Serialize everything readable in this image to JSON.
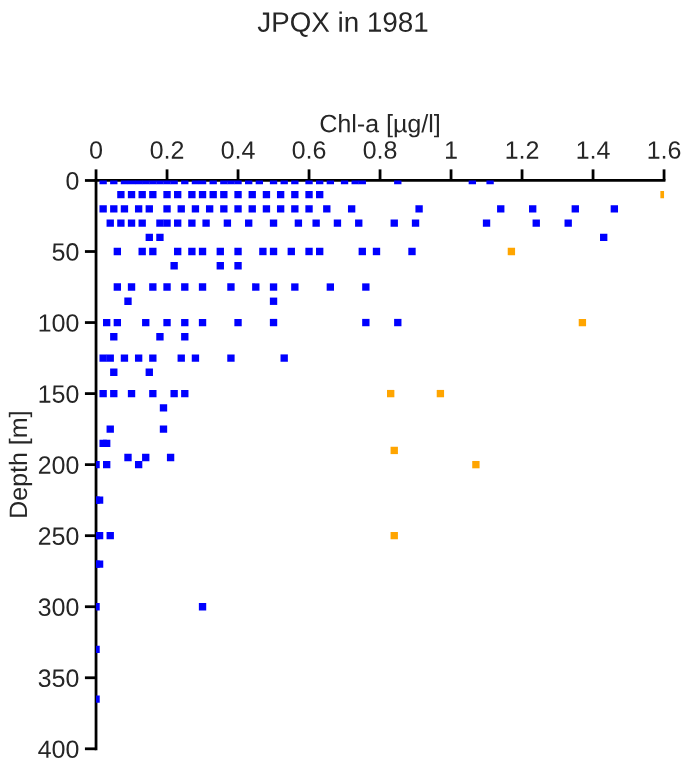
{
  "chart_data": {
    "type": "scatter",
    "title": "JPQX in 1981",
    "xlabel": "Chl-a [µg/l]",
    "ylabel": "Depth [m]",
    "xlim": [
      0,
      1.6
    ],
    "xticks": [
      0,
      0.2,
      0.4,
      0.6,
      0.8,
      1,
      1.2,
      1.4,
      1.6
    ],
    "ylim": [
      400,
      0
    ],
    "yticks": [
      0,
      50,
      100,
      150,
      200,
      250,
      300,
      350,
      400
    ],
    "grid": false,
    "legend": false,
    "marker": "square",
    "series": [
      {
        "color": "#0000ff",
        "x": [
          0.02,
          0.05,
          0.08,
          0.1,
          0.12,
          0.14,
          0.16,
          0.18,
          0.2,
          0.22,
          0.25,
          0.28,
          0.3,
          0.33,
          0.36,
          0.38,
          0.4,
          0.43,
          0.46,
          0.5,
          0.53,
          0.56,
          0.6,
          0.63,
          0.66,
          0.7,
          0.73,
          0.75,
          0.85,
          1.06,
          1.11,
          0.07,
          0.1,
          0.13,
          0.16,
          0.2,
          0.23,
          0.27,
          0.3,
          0.33,
          0.36,
          0.4,
          0.44,
          0.48,
          0.52,
          0.56,
          0.6,
          0.63,
          0.02,
          0.05,
          0.08,
          0.12,
          0.15,
          0.2,
          0.24,
          0.28,
          0.32,
          0.36,
          0.4,
          0.44,
          0.48,
          0.52,
          0.56,
          0.6,
          0.65,
          0.72,
          0.91,
          1.14,
          1.23,
          1.35,
          1.46,
          0.04,
          0.07,
          0.1,
          0.13,
          0.18,
          0.2,
          0.23,
          0.27,
          0.31,
          0.37,
          0.43,
          0.5,
          0.57,
          0.62,
          0.68,
          0.74,
          0.84,
          0.9,
          1.1,
          1.24,
          1.33,
          0.15,
          0.18,
          1.43,
          0.06,
          0.13,
          0.16,
          0.23,
          0.27,
          0.3,
          0.35,
          0.4,
          0.47,
          0.5,
          0.55,
          0.6,
          0.63,
          0.75,
          0.79,
          0.89,
          0.22,
          0.35,
          0.4,
          0.06,
          0.1,
          0.16,
          0.2,
          0.25,
          0.3,
          0.38,
          0.45,
          0.5,
          0.56,
          0.66,
          0.76,
          0.09,
          0.5,
          0.03,
          0.06,
          0.14,
          0.2,
          0.25,
          0.3,
          0.4,
          0.5,
          0.76,
          0.85,
          0.05,
          0.18,
          0.25,
          0.02,
          0.04,
          0.08,
          0.12,
          0.16,
          0.24,
          0.28,
          0.38,
          0.53,
          0.05,
          0.15,
          0.02,
          0.05,
          0.1,
          0.16,
          0.22,
          0.25,
          0.19,
          0.04,
          0.19,
          0.02,
          0.03,
          0.09,
          0.14,
          0.21,
          0,
          0.03,
          0.12,
          0,
          0.01,
          0,
          0.01,
          0.04,
          0,
          0.01,
          0,
          0.3,
          0,
          0
        ],
        "values": [
          0,
          0,
          0,
          0,
          0,
          0,
          0,
          0,
          0,
          0,
          0,
          0,
          0,
          0,
          0,
          0,
          0,
          0,
          0,
          0,
          0,
          0,
          0,
          0,
          0,
          0,
          0,
          0,
          0,
          0,
          0,
          10,
          10,
          10,
          10,
          10,
          10,
          10,
          10,
          10,
          10,
          10,
          10,
          10,
          10,
          10,
          10,
          10,
          20,
          20,
          20,
          20,
          20,
          20,
          20,
          20,
          20,
          20,
          20,
          20,
          20,
          20,
          20,
          20,
          20,
          20,
          20,
          20,
          20,
          20,
          20,
          30,
          30,
          30,
          30,
          30,
          30,
          30,
          30,
          30,
          30,
          30,
          30,
          30,
          30,
          30,
          30,
          30,
          30,
          30,
          30,
          30,
          40,
          40,
          40,
          50,
          50,
          50,
          50,
          50,
          50,
          50,
          50,
          50,
          50,
          50,
          50,
          50,
          50,
          50,
          50,
          60,
          60,
          60,
          75,
          75,
          75,
          75,
          75,
          75,
          75,
          75,
          75,
          75,
          75,
          75,
          85,
          85,
          100,
          100,
          100,
          100,
          100,
          100,
          100,
          100,
          100,
          100,
          110,
          110,
          110,
          125,
          125,
          125,
          125,
          125,
          125,
          125,
          125,
          125,
          135,
          135,
          150,
          150,
          150,
          150,
          150,
          150,
          160,
          175,
          175,
          185,
          185,
          195,
          195,
          195,
          200,
          200,
          200,
          225,
          225,
          250,
          250,
          250,
          270,
          270,
          300,
          300,
          330,
          365
        ]
      },
      {
        "color": "#ffa500",
        "x": [
          1.6,
          1.17,
          1.37,
          0.83,
          0.97,
          0.84,
          1.07,
          0.84
        ],
        "values": [
          10,
          50,
          100,
          150,
          150,
          190,
          200,
          250
        ]
      }
    ]
  }
}
